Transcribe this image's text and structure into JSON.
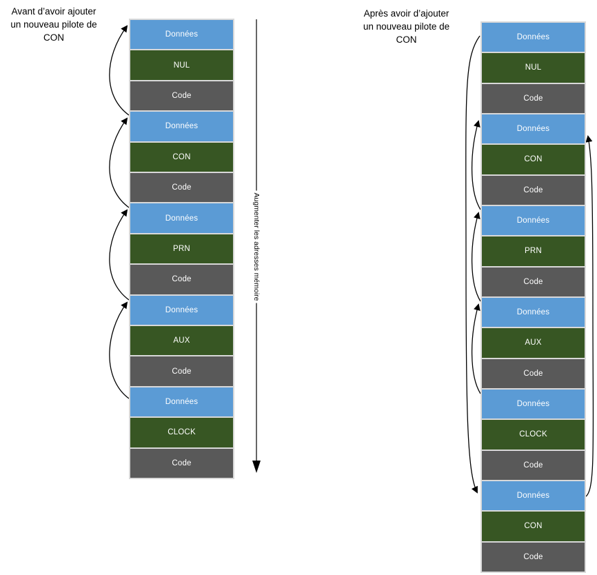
{
  "titles": {
    "before": "Avant d’avoir ajouter\nun nouveau pilote de\nCON",
    "after": "Après avoir d’ajouter\nun nouveau pilote de\nCON"
  },
  "memory_axis": {
    "label": "Augmenter les adresses mémoire",
    "direction": "down"
  },
  "labels": {
    "data_block": "Données",
    "code_block": "Code"
  },
  "stacks": {
    "before": {
      "drivers": [
        "NUL",
        "CON",
        "PRN",
        "AUX",
        "CLOCK"
      ]
    },
    "after": {
      "drivers": [
        "NUL",
        "CON",
        "PRN",
        "AUX",
        "CLOCK",
        "CON"
      ]
    }
  },
  "pointer_links": {
    "before": [
      {
        "from": "Données#2",
        "to": "Données#1"
      },
      {
        "from": "Données#3",
        "to": "Données#2"
      },
      {
        "from": "Données#4",
        "to": "Données#3"
      },
      {
        "from": "Données#5",
        "to": "Données#4"
      }
    ],
    "after": [
      {
        "from": "Données#3",
        "to": "Données#2"
      },
      {
        "from": "Données#4",
        "to": "Données#3"
      },
      {
        "from": "Données#5",
        "to": "Données#4"
      },
      {
        "from": "Données#1",
        "to": "Données#6"
      },
      {
        "from": "Données#6",
        "to": "Données#2"
      }
    ]
  },
  "colors": {
    "data_block": "#5B9BD5",
    "driver_block": "#375623",
    "code_block": "#595959",
    "block_border": "#D9D9D9",
    "block_text": "#FFFFFF",
    "arrow": "#000000",
    "title_text": "#000000"
  }
}
